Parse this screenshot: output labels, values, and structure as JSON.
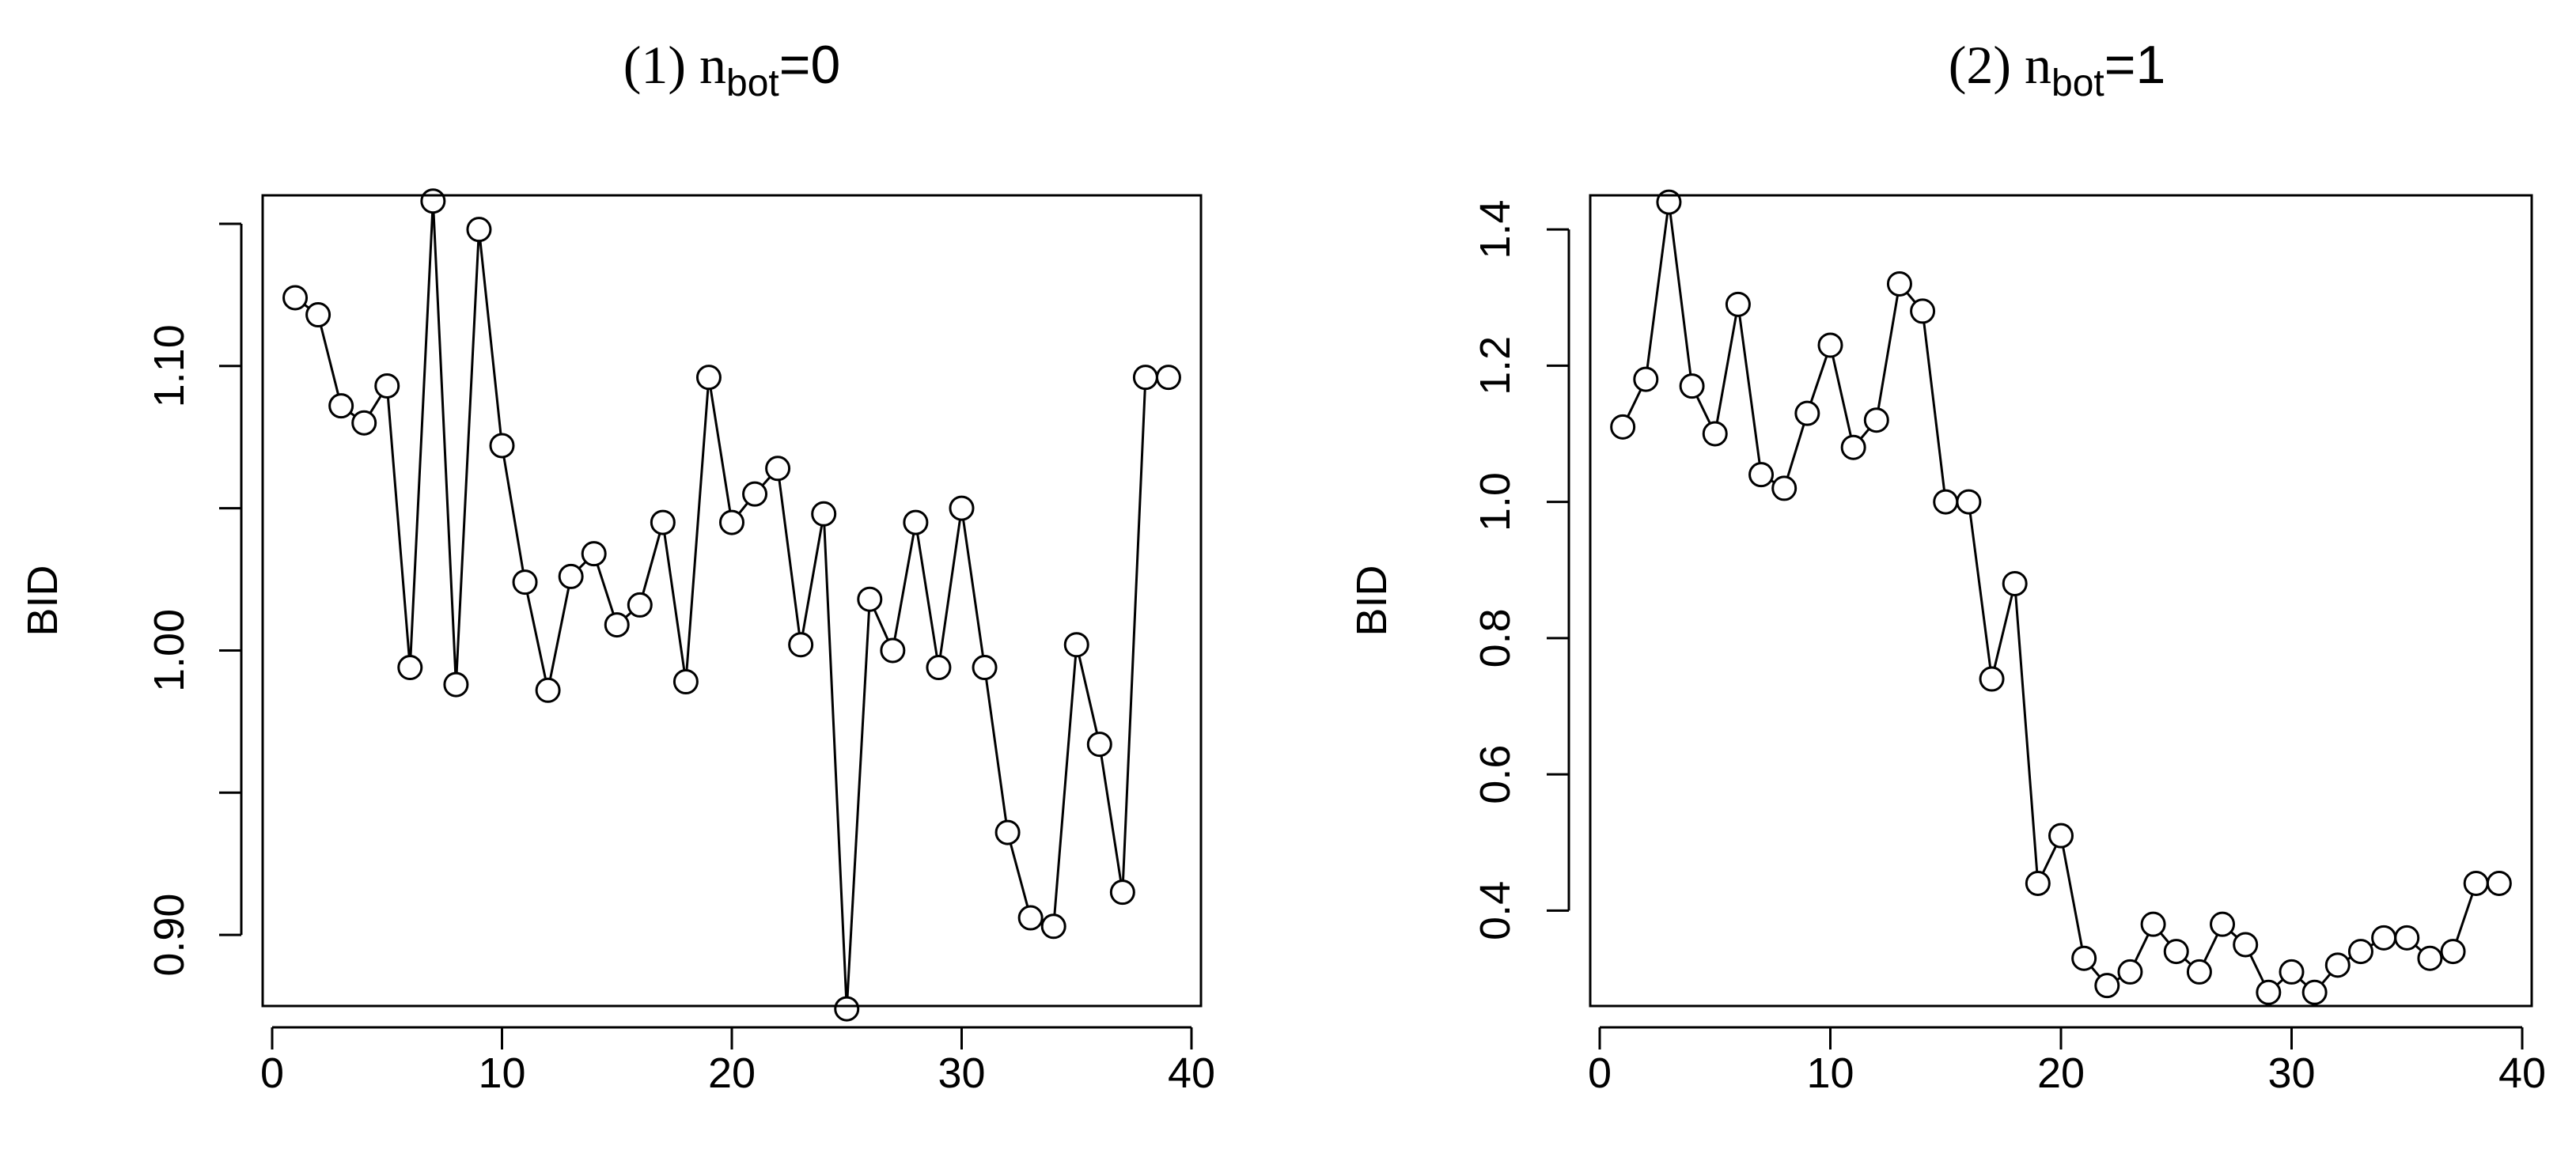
{
  "chart_data": [
    {
      "type": "line",
      "title": "(1) n",
      "title_subscript": "bot",
      "title_suffix": "=0",
      "xlabel": "",
      "ylabel": "BID",
      "xlim": [
        0,
        40
      ],
      "ylim": [
        0.875,
        1.16
      ],
      "xticks": [
        0,
        10,
        20,
        30,
        40
      ],
      "yticks": [
        0.9,
        0.95,
        1.0,
        1.05,
        1.1,
        1.15
      ],
      "ytick_labels": [
        "0.90",
        "",
        "1.00",
        "",
        "1.10",
        ""
      ],
      "marker": "open-circle",
      "x": [
        1,
        2,
        3,
        4,
        5,
        6,
        7,
        8,
        9,
        10,
        11,
        12,
        13,
        14,
        15,
        16,
        17,
        18,
        19,
        20,
        21,
        22,
        23,
        24,
        25,
        26,
        27,
        28,
        29,
        30,
        31,
        32,
        33,
        34,
        35,
        36,
        37,
        38,
        39
      ],
      "y": [
        1.124,
        1.118,
        1.086,
        1.08,
        1.093,
        0.994,
        1.158,
        0.988,
        1.148,
        1.072,
        1.024,
        0.986,
        1.026,
        1.034,
        1.009,
        1.016,
        1.045,
        0.989,
        1.096,
        1.045,
        1.055,
        1.064,
        1.002,
        1.048,
        0.874,
        1.018,
        1.0,
        1.045,
        0.994,
        1.05,
        0.994,
        0.936,
        0.906,
        0.903,
        1.002,
        0.967,
        0.915,
        1.096,
        1.096
      ]
    },
    {
      "type": "line",
      "title": "(2) n",
      "title_subscript": "bot",
      "title_suffix": "=1",
      "xlabel": "",
      "ylabel": "BID",
      "xlim": [
        0,
        40
      ],
      "ylim": [
        0.26,
        1.45
      ],
      "xticks": [
        0,
        10,
        20,
        30,
        40
      ],
      "yticks": [
        0.4,
        0.6,
        0.8,
        1.0,
        1.2,
        1.4
      ],
      "ytick_labels": [
        "0.4",
        "0.6",
        "0.8",
        "1.0",
        "1.2",
        "1.4"
      ],
      "marker": "open-circle",
      "x": [
        1,
        2,
        3,
        4,
        5,
        6,
        7,
        8,
        9,
        10,
        11,
        12,
        13,
        14,
        15,
        16,
        17,
        18,
        19,
        20,
        21,
        22,
        23,
        24,
        25,
        26,
        27,
        28,
        29,
        30,
        31,
        32,
        33,
        34,
        35,
        36,
        37,
        38,
        39
      ],
      "y": [
        1.11,
        1.18,
        1.44,
        1.17,
        1.1,
        1.29,
        1.04,
        1.02,
        1.13,
        1.23,
        1.08,
        1.12,
        1.32,
        1.28,
        1.0,
        1.0,
        0.74,
        0.88,
        0.44,
        0.51,
        0.33,
        0.29,
        0.31,
        0.38,
        0.34,
        0.31,
        0.38,
        0.35,
        0.28,
        0.31,
        0.28,
        0.32,
        0.34,
        0.36,
        0.36,
        0.33,
        0.34,
        0.44,
        0.44
      ]
    }
  ]
}
